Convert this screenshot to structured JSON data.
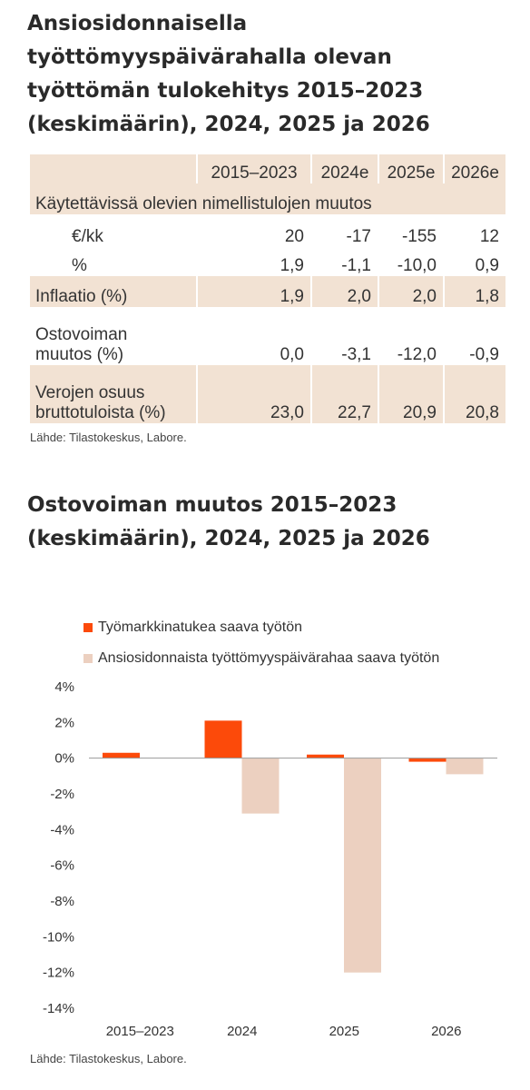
{
  "table_title": "Ansiosidonnaisella työttömyyspäivärahalla olevan työttömän tulokehitys 2015–2023 (keskimäärin), 2024, 2025 ja 2026",
  "table": {
    "columns": [
      "",
      "2015–2023",
      "2024e",
      "2025e",
      "2026e"
    ],
    "section_label": "Käytettävissä olevien nimellistulojen muutos",
    "rows": [
      {
        "label": "€/kk",
        "values": [
          "20",
          "-17",
          "-155",
          "12"
        ]
      },
      {
        "label": "%",
        "values": [
          "1,9",
          "-1,1",
          "-10,0",
          "0,9"
        ]
      },
      {
        "label": "Inflaatio (%)",
        "values": [
          "1,9",
          "2,0",
          "2,0",
          "1,8"
        ]
      },
      {
        "label_line1": "Ostovoiman",
        "label_line2": "muutos (%)",
        "values": [
          "0,0",
          "-3,1",
          "-12,0",
          "-0,9"
        ]
      },
      {
        "label_line1": "Verojen osuus",
        "label_line2": "bruttotuloista (%)",
        "values": [
          "23,0",
          "22,7",
          "20,9",
          "20,8"
        ]
      }
    ],
    "source": "Lähde: Tilastokeskus, Labore."
  },
  "chart_title": "Ostovoiman muutos 2015–2023 (keskimäärin), 2024, 2025 ja 2026",
  "chart_data": {
    "type": "bar",
    "categories": [
      "2015–2023",
      "2024",
      "2025",
      "2026"
    ],
    "series": [
      {
        "name": "Työmarkkinatukea saava työtön",
        "color": "#fc4a0a",
        "values": [
          0.3,
          2.1,
          0.2,
          -0.2
        ]
      },
      {
        "name": "Ansiosidonnaista työttömyyspäivärahaa saava työtön",
        "color": "#ecd0c0",
        "values": [
          0.0,
          -3.1,
          -12.0,
          -0.9
        ]
      }
    ],
    "ylim": [
      -14,
      4
    ],
    "yticks": [
      4,
      2,
      0,
      -2,
      -4,
      -6,
      -8,
      -10,
      -12,
      -14
    ],
    "ytick_labels": [
      "4%",
      "2%",
      "0%",
      "-2%",
      "-4%",
      "-6%",
      "-8%",
      "-10%",
      "-12%",
      "-14%"
    ],
    "grid": false,
    "legend_position": "top-left"
  },
  "chart_source": "Lähde: Tilastokeskus, Labore."
}
